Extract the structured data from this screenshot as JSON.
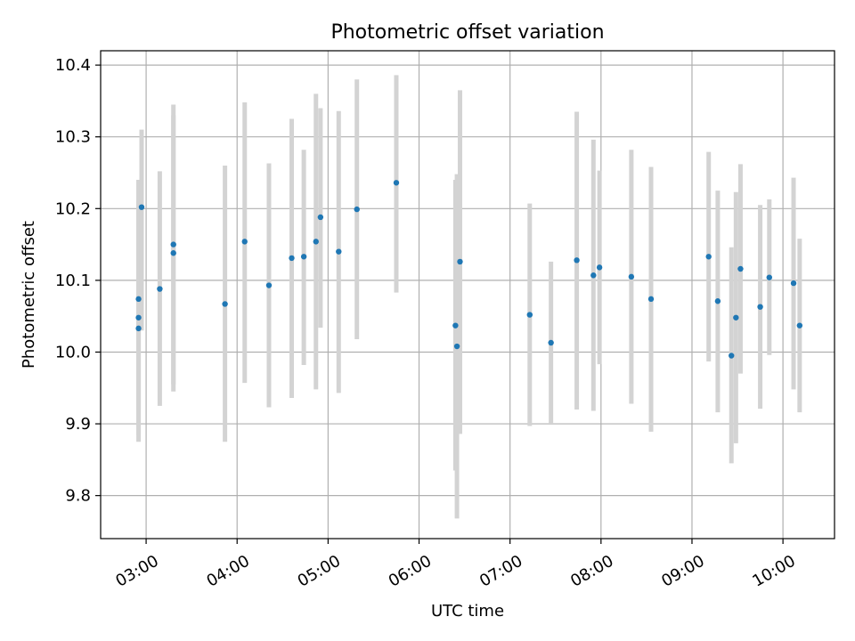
{
  "chart_data": {
    "type": "scatter",
    "title": "Photometric offset variation",
    "xlabel": "UTC time",
    "ylabel": "Photometric offset",
    "xlim": [
      "02:30",
      "10:34"
    ],
    "ylim": [
      9.74,
      10.42
    ],
    "x_ticks": [
      "03:00",
      "04:00",
      "05:00",
      "06:00",
      "07:00",
      "08:00",
      "09:00",
      "10:00"
    ],
    "y_ticks": [
      "9.8",
      "9.9",
      "10.0",
      "10.1",
      "10.2",
      "10.3",
      "10.4"
    ],
    "grid": true,
    "legend": false,
    "colors": {
      "points": "#1f77b4",
      "errorbars": "#d3d3d3",
      "grid": "#b0b0b0"
    },
    "points": [
      {
        "x": "02:55",
        "y": 10.033,
        "ylo": 9.875,
        "yhi": 10.24
      },
      {
        "x": "02:55",
        "y": 10.048,
        "ylo": 9.885,
        "yhi": 10.21
      },
      {
        "x": "02:55",
        "y": 10.074,
        "ylo": 9.92,
        "yhi": 10.24
      },
      {
        "x": "02:57",
        "y": 10.202,
        "ylo": 10.03,
        "yhi": 10.31
      },
      {
        "x": "03:09",
        "y": 10.088,
        "ylo": 9.925,
        "yhi": 10.252
      },
      {
        "x": "03:18",
        "y": 10.15,
        "ylo": 9.955,
        "yhi": 10.345
      },
      {
        "x": "03:18",
        "y": 10.138,
        "ylo": 9.945,
        "yhi": 10.33
      },
      {
        "x": "03:52",
        "y": 10.067,
        "ylo": 9.875,
        "yhi": 10.26
      },
      {
        "x": "04:05",
        "y": 10.154,
        "ylo": 9.957,
        "yhi": 10.348
      },
      {
        "x": "04:21",
        "y": 10.093,
        "ylo": 9.923,
        "yhi": 10.263
      },
      {
        "x": "04:36",
        "y": 10.131,
        "ylo": 9.936,
        "yhi": 10.325
      },
      {
        "x": "04:44",
        "y": 10.133,
        "ylo": 9.982,
        "yhi": 10.282
      },
      {
        "x": "04:52",
        "y": 10.154,
        "ylo": 9.948,
        "yhi": 10.36
      },
      {
        "x": "04:55",
        "y": 10.188,
        "ylo": 10.034,
        "yhi": 10.34
      },
      {
        "x": "05:07",
        "y": 10.14,
        "ylo": 9.943,
        "yhi": 10.336
      },
      {
        "x": "05:19",
        "y": 10.199,
        "ylo": 10.018,
        "yhi": 10.38
      },
      {
        "x": "05:45",
        "y": 10.236,
        "ylo": 10.083,
        "yhi": 10.386
      },
      {
        "x": "06:24",
        "y": 10.037,
        "ylo": 9.835,
        "yhi": 10.24
      },
      {
        "x": "06:25",
        "y": 10.008,
        "ylo": 9.768,
        "yhi": 10.248
      },
      {
        "x": "06:27",
        "y": 10.126,
        "ylo": 9.886,
        "yhi": 10.365
      },
      {
        "x": "07:13",
        "y": 10.052,
        "ylo": 9.897,
        "yhi": 10.207
      },
      {
        "x": "07:27",
        "y": 10.013,
        "ylo": 9.9,
        "yhi": 10.126
      },
      {
        "x": "07:44",
        "y": 10.128,
        "ylo": 9.92,
        "yhi": 10.335
      },
      {
        "x": "07:55",
        "y": 10.107,
        "ylo": 9.918,
        "yhi": 10.296
      },
      {
        "x": "07:59",
        "y": 10.118,
        "ylo": 9.983,
        "yhi": 10.253
      },
      {
        "x": "08:20",
        "y": 10.105,
        "ylo": 9.928,
        "yhi": 10.282
      },
      {
        "x": "08:33",
        "y": 10.074,
        "ylo": 9.889,
        "yhi": 10.258
      },
      {
        "x": "09:11",
        "y": 10.133,
        "ylo": 9.987,
        "yhi": 10.279
      },
      {
        "x": "09:17",
        "y": 10.071,
        "ylo": 9.916,
        "yhi": 10.225
      },
      {
        "x": "09:26",
        "y": 9.995,
        "ylo": 9.845,
        "yhi": 10.146
      },
      {
        "x": "09:29",
        "y": 10.048,
        "ylo": 9.873,
        "yhi": 10.223
      },
      {
        "x": "09:32",
        "y": 10.116,
        "ylo": 9.97,
        "yhi": 10.262
      },
      {
        "x": "09:45",
        "y": 10.063,
        "ylo": 9.921,
        "yhi": 10.205
      },
      {
        "x": "09:51",
        "y": 10.104,
        "ylo": 9.996,
        "yhi": 10.213
      },
      {
        "x": "10:07",
        "y": 10.096,
        "ylo": 9.948,
        "yhi": 10.243
      },
      {
        "x": "10:11",
        "y": 10.037,
        "ylo": 9.916,
        "yhi": 10.158
      }
    ]
  }
}
